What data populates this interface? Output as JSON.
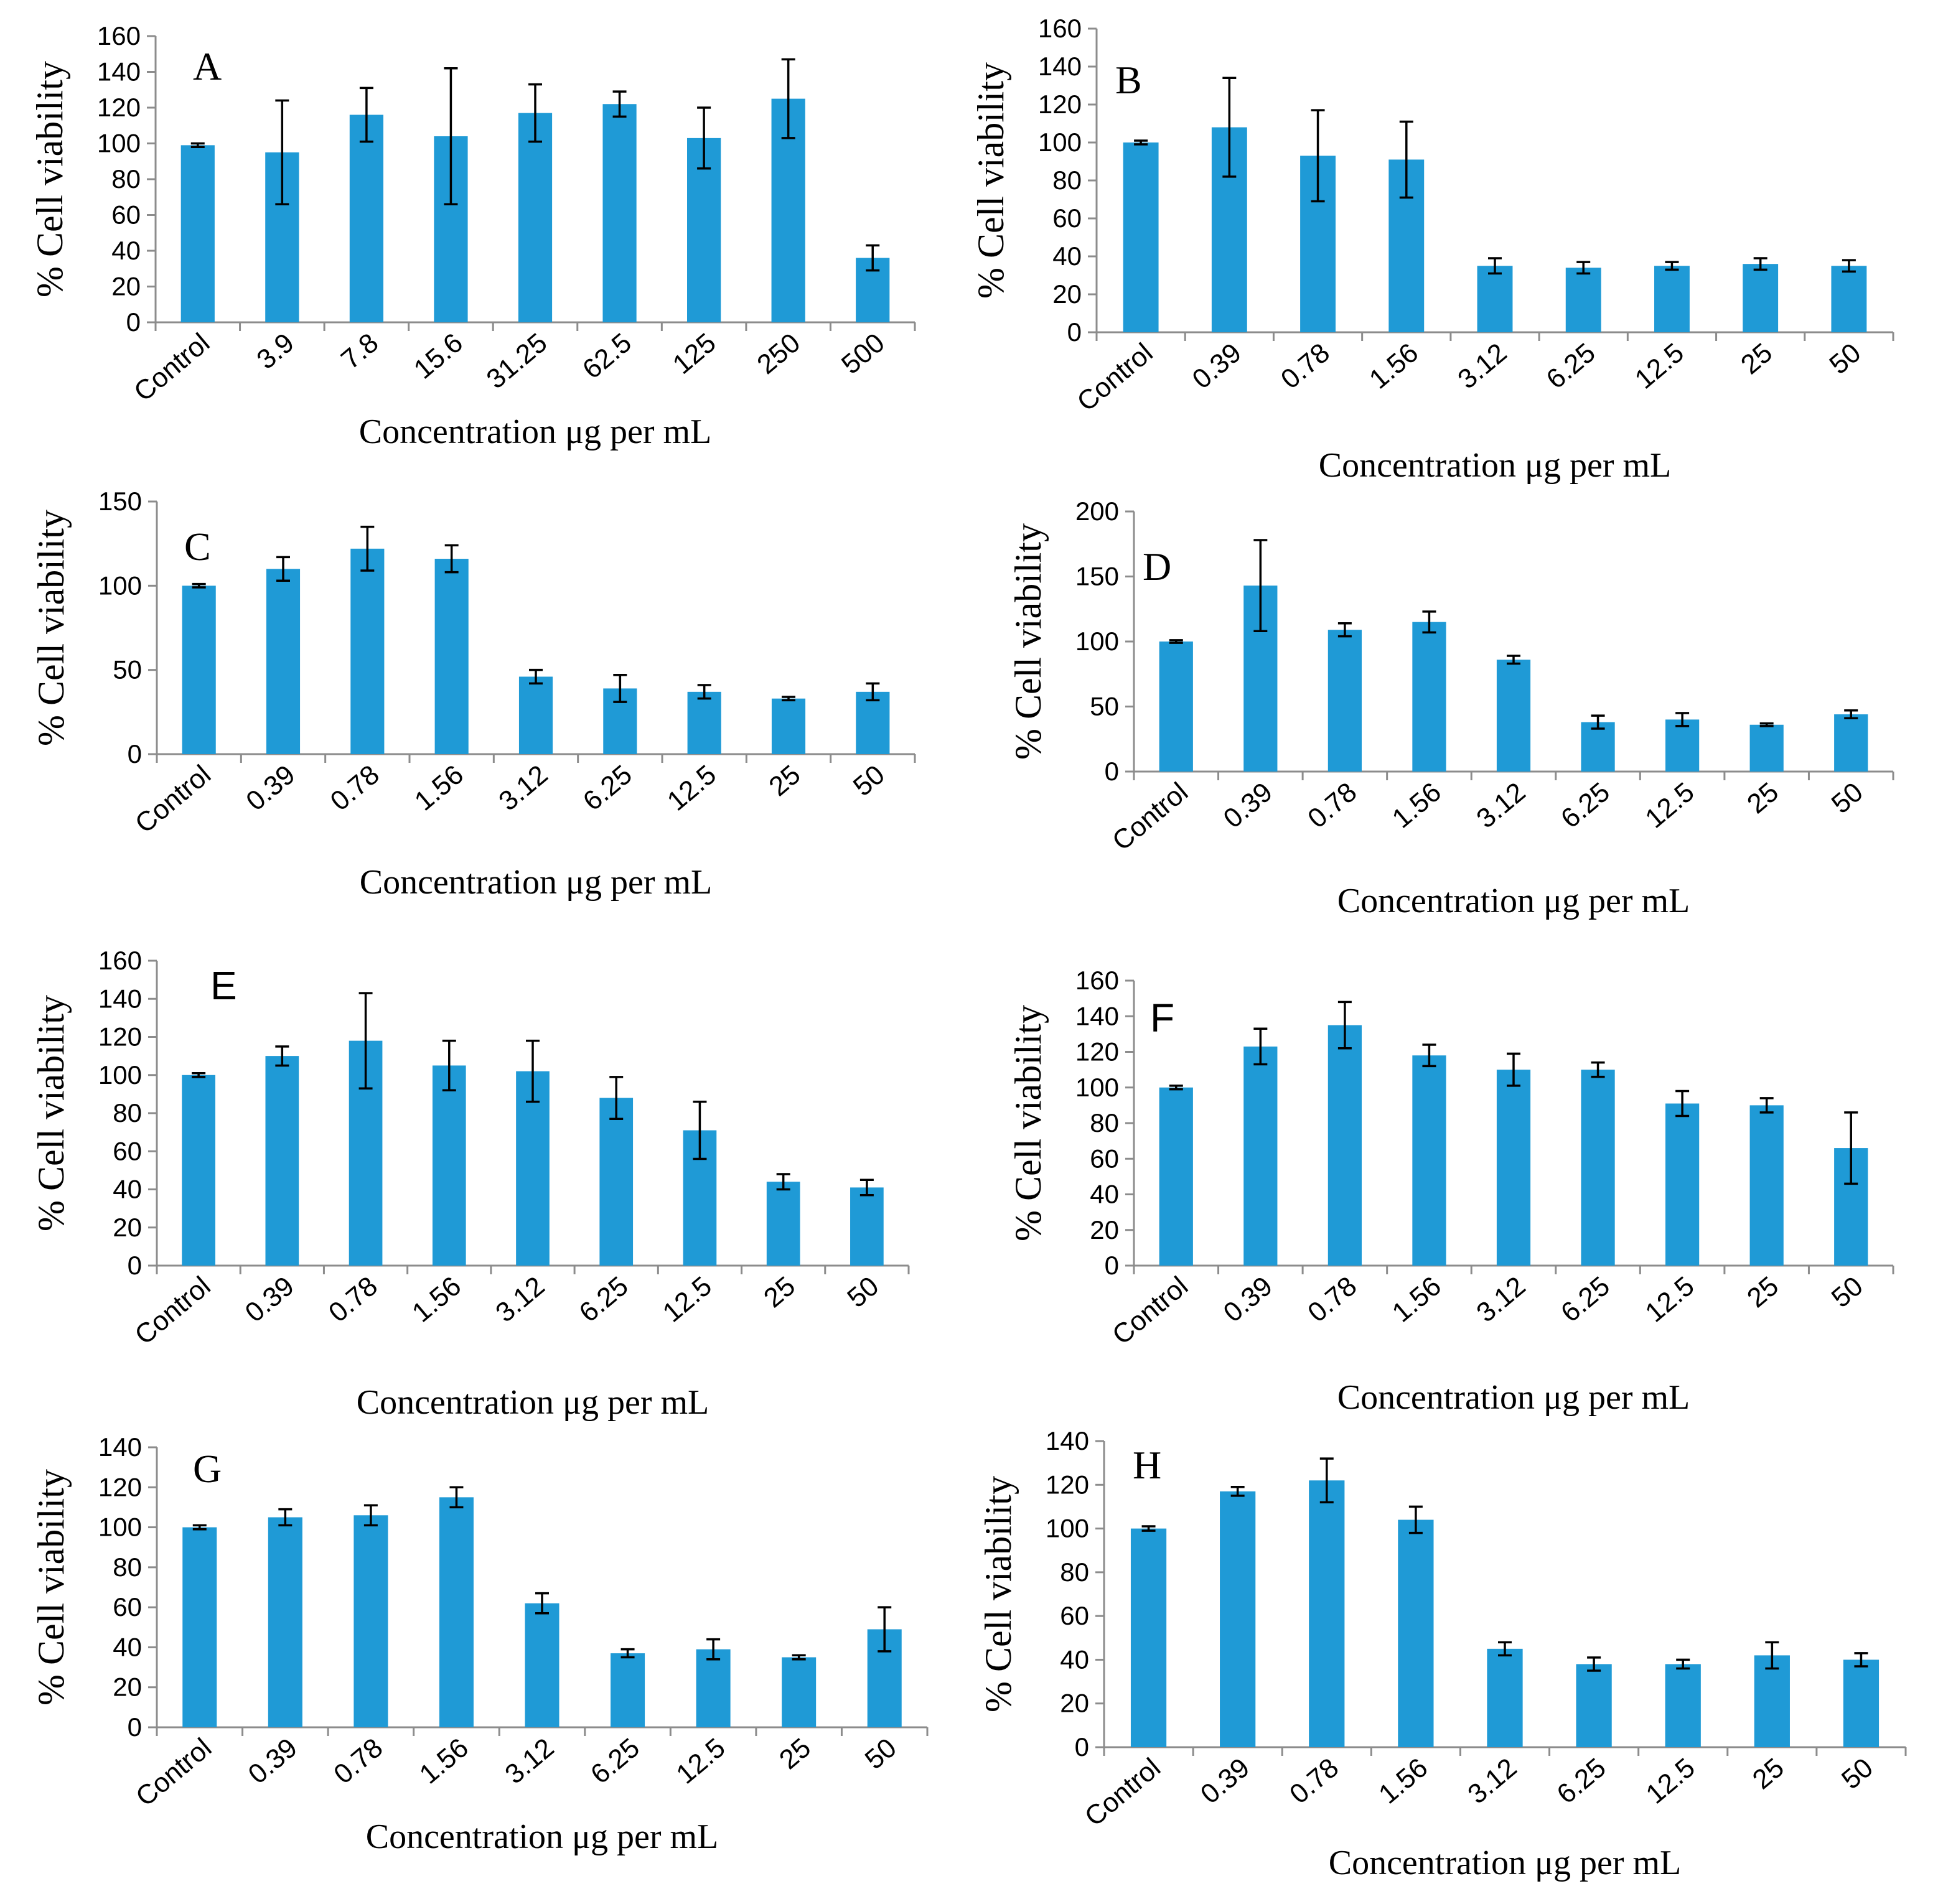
{
  "figure": {
    "colors": {
      "bar": "#1f9ad6",
      "axis": "#8c8c8c",
      "error": "#000000"
    },
    "x_title": "Concentration μg per mL",
    "y_title": "% Cell viability"
  },
  "chart_data": [
    {
      "panel": "A",
      "type": "bar",
      "title": "A",
      "xlabel": "Concentration μg per mL",
      "ylabel": "% Cell viability",
      "categories": [
        "Control",
        "3.9",
        "7.8",
        "15.6",
        "31.25",
        "62.5",
        "125",
        "250",
        "500"
      ],
      "values": [
        99,
        95,
        116,
        104,
        117,
        122,
        103,
        125,
        36
      ],
      "errors": [
        1,
        29,
        15,
        38,
        16,
        7,
        17,
        22,
        7
      ],
      "ylim": [
        0,
        160
      ],
      "yticks": [
        0,
        20,
        40,
        60,
        80,
        100,
        120,
        140,
        160
      ]
    },
    {
      "panel": "B",
      "type": "bar",
      "title": "B",
      "xlabel": "Concentration μg per mL",
      "ylabel": "% Cell viability",
      "categories": [
        "Control",
        "0.39",
        "0.78",
        "1.56",
        "3.12",
        "6.25",
        "12.5",
        "25",
        "50"
      ],
      "values": [
        100,
        108,
        93,
        91,
        35,
        34,
        35,
        36,
        35
      ],
      "errors": [
        1,
        26,
        24,
        20,
        4,
        3,
        2,
        3,
        3
      ],
      "ylim": [
        0,
        160
      ],
      "yticks": [
        0,
        20,
        40,
        60,
        80,
        100,
        120,
        140,
        160
      ]
    },
    {
      "panel": "C",
      "type": "bar",
      "title": "C",
      "xlabel": "Concentration μg per mL",
      "ylabel": "% Cell viability",
      "categories": [
        "Control",
        "0.39",
        "0.78",
        "1.56",
        "3.12",
        "6.25",
        "12.5",
        "25",
        "50"
      ],
      "values": [
        100,
        110,
        122,
        116,
        46,
        39,
        37,
        33,
        37
      ],
      "errors": [
        1,
        7,
        13,
        8,
        4,
        8,
        4,
        1,
        5
      ],
      "ylim": [
        0,
        150
      ],
      "yticks": [
        0,
        50,
        100,
        150
      ]
    },
    {
      "panel": "D",
      "type": "bar",
      "title": "D",
      "xlabel": "Concentration μg per mL",
      "ylabel": "% Cell viability",
      "categories": [
        "Control",
        "0.39",
        "0.78",
        "1.56",
        "3.12",
        "6.25",
        "12.5",
        "25",
        "50"
      ],
      "values": [
        100,
        143,
        109,
        115,
        86,
        38,
        40,
        36,
        44
      ],
      "errors": [
        1,
        35,
        5,
        8,
        3,
        5,
        5,
        1,
        3
      ],
      "ylim": [
        0,
        200
      ],
      "yticks": [
        0,
        50,
        100,
        150,
        200
      ]
    },
    {
      "panel": "E",
      "type": "bar",
      "title": "E",
      "xlabel": "Concentration μg per mL",
      "ylabel": "% Cell viability",
      "categories": [
        "Control",
        "0.39",
        "0.78",
        "1.56",
        "3.12",
        "6.25",
        "12.5",
        "25",
        "50"
      ],
      "values": [
        100,
        110,
        118,
        105,
        102,
        88,
        71,
        44,
        41
      ],
      "errors": [
        1,
        5,
        25,
        13,
        16,
        11,
        15,
        4,
        4
      ],
      "ylim": [
        0,
        160
      ],
      "yticks": [
        0,
        20,
        40,
        60,
        80,
        100,
        120,
        140,
        160
      ]
    },
    {
      "panel": "F",
      "type": "bar",
      "title": "F",
      "xlabel": "Concentration μg per mL",
      "ylabel": "% Cell viability",
      "categories": [
        "Control",
        "0.39",
        "0.78",
        "1.56",
        "3.12",
        "6.25",
        "12.5",
        "25",
        "50"
      ],
      "values": [
        100,
        123,
        135,
        118,
        110,
        110,
        91,
        90,
        66
      ],
      "errors": [
        1,
        10,
        13,
        6,
        9,
        4,
        7,
        4,
        20
      ],
      "ylim": [
        0,
        160
      ],
      "yticks": [
        0,
        20,
        40,
        60,
        80,
        100,
        120,
        140,
        160
      ]
    },
    {
      "panel": "G",
      "type": "bar",
      "title": "G",
      "xlabel": "Concentration μg per mL",
      "ylabel": "% Cell viability",
      "categories": [
        "Control",
        "0.39",
        "0.78",
        "1.56",
        "3.12",
        "6.25",
        "12.5",
        "25",
        "50"
      ],
      "values": [
        100,
        105,
        106,
        115,
        62,
        37,
        39,
        35,
        49
      ],
      "errors": [
        1,
        4,
        5,
        5,
        5,
        2,
        5,
        1,
        11
      ],
      "ylim": [
        0,
        140
      ],
      "yticks": [
        0,
        20,
        40,
        60,
        80,
        100,
        120,
        140
      ]
    },
    {
      "panel": "H",
      "type": "bar",
      "title": "H",
      "xlabel": "Concentration μg per mL",
      "ylabel": "% Cell viability",
      "categories": [
        "Control",
        "0.39",
        "0.78",
        "1.56",
        "3.12",
        "6.25",
        "12.5",
        "25",
        "50"
      ],
      "values": [
        100,
        117,
        122,
        104,
        45,
        38,
        38,
        42,
        40
      ],
      "errors": [
        1,
        2,
        10,
        6,
        3,
        3,
        2,
        6,
        3
      ],
      "ylim": [
        0,
        140
      ],
      "yticks": [
        0,
        20,
        40,
        60,
        80,
        100,
        120,
        140
      ]
    }
  ]
}
